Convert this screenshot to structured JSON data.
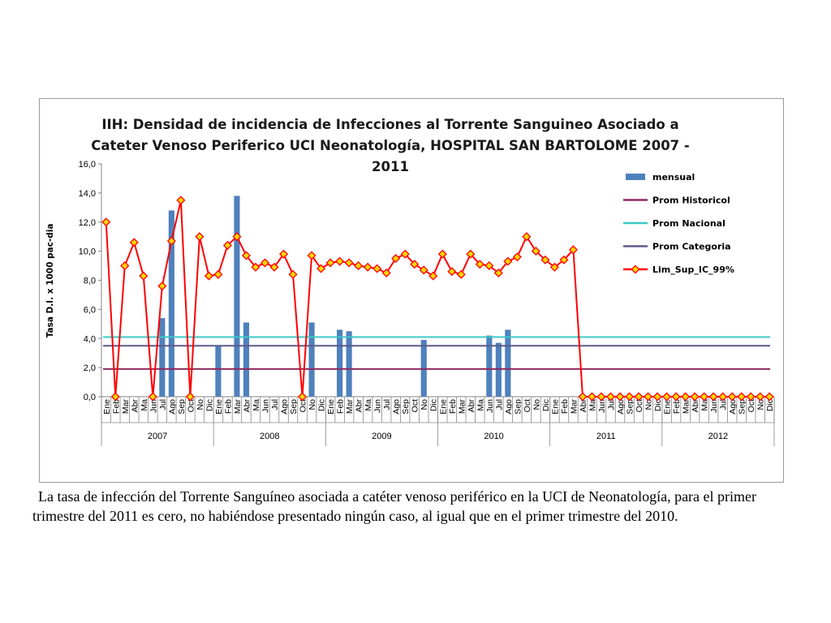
{
  "caption": "La tasa de infección del Torrente Sanguíneo asociada a catéter venoso periférico en la UCI de Neonatología, para el primer trimestre del 2011 es cero, no habiéndose presentado ningún caso, al igual que en el primer trimestre del 2010.",
  "chart_data": {
    "type": "bar",
    "title_lines": [
      "IIH: Densidad de incidencia  de Infecciones al Torrente Sanguineo Asociado a",
      "Cateter Venoso Periferico  UCI Neonatología, HOSPITAL SAN BARTOLOME 2007 -",
      "2011"
    ],
    "ylabel": "Tasa D.I. x 1000 pac-dia",
    "ylim": [
      0,
      16
    ],
    "yticks": [
      "0,0",
      "2,0",
      "4,0",
      "6,0",
      "8,0",
      "10,0",
      "12,0",
      "14,0",
      "16,0"
    ],
    "years": [
      "2007",
      "2008",
      "2009",
      "2010",
      "2011",
      "2012"
    ],
    "months": [
      "Ene",
      "Feb",
      "Mar",
      "Abr",
      "Ma",
      "Jun",
      "Jul",
      "Ago",
      "Sep",
      "Oct",
      "No",
      "Dic"
    ],
    "legend_position": "right",
    "series": [
      {
        "name": "mensual",
        "kind": "bar",
        "color": "#4f81bd",
        "values": [
          0,
          0,
          0,
          0,
          0,
          0,
          5.4,
          12.8,
          0,
          0,
          0,
          0,
          3.5,
          0,
          13.8,
          5.1,
          0,
          0,
          0,
          0,
          0,
          0,
          5.1,
          0,
          0,
          4.6,
          4.5,
          0,
          0,
          0,
          0,
          0,
          0,
          0,
          3.9,
          0,
          0,
          0,
          0,
          0,
          0,
          4.2,
          3.7,
          4.6,
          0,
          0,
          0,
          0,
          0,
          0,
          0,
          0,
          0,
          0,
          0,
          0,
          0,
          0,
          0,
          0,
          0,
          0,
          0,
          0,
          0,
          0,
          0,
          0,
          0,
          0,
          0,
          0
        ]
      },
      {
        "name": "Prom Historicol",
        "kind": "hline",
        "color": "#8e2a5e",
        "value": 1.9
      },
      {
        "name": "Prom Nacional",
        "kind": "hline",
        "color": "#3cc8c8",
        "value": 4.1
      },
      {
        "name": "Prom Categoria",
        "kind": "hline",
        "color": "#5e5a8c",
        "value": 3.5
      },
      {
        "name": "Lim_Sup_IC_99%",
        "kind": "line",
        "color": "#ff0000",
        "marker_color": "#ffd700",
        "values": [
          12.0,
          0,
          9.0,
          10.6,
          8.3,
          0,
          7.6,
          10.7,
          13.5,
          0,
          11.0,
          8.3,
          8.4,
          10.4,
          11.0,
          9.7,
          8.9,
          9.2,
          8.9,
          9.8,
          8.4,
          0,
          9.7,
          8.8,
          9.2,
          9.3,
          9.2,
          9.0,
          8.9,
          8.8,
          8.5,
          9.5,
          9.8,
          9.1,
          8.7,
          8.3,
          9.8,
          8.6,
          8.4,
          9.8,
          9.1,
          9.0,
          8.5,
          9.3,
          9.6,
          11.0,
          10.0,
          9.4,
          8.9,
          9.4,
          10.1,
          0,
          0,
          0,
          0,
          0,
          0,
          0,
          0,
          0,
          0,
          0,
          0,
          0,
          0,
          0,
          0,
          0,
          0,
          0,
          0,
          0
        ]
      }
    ]
  }
}
